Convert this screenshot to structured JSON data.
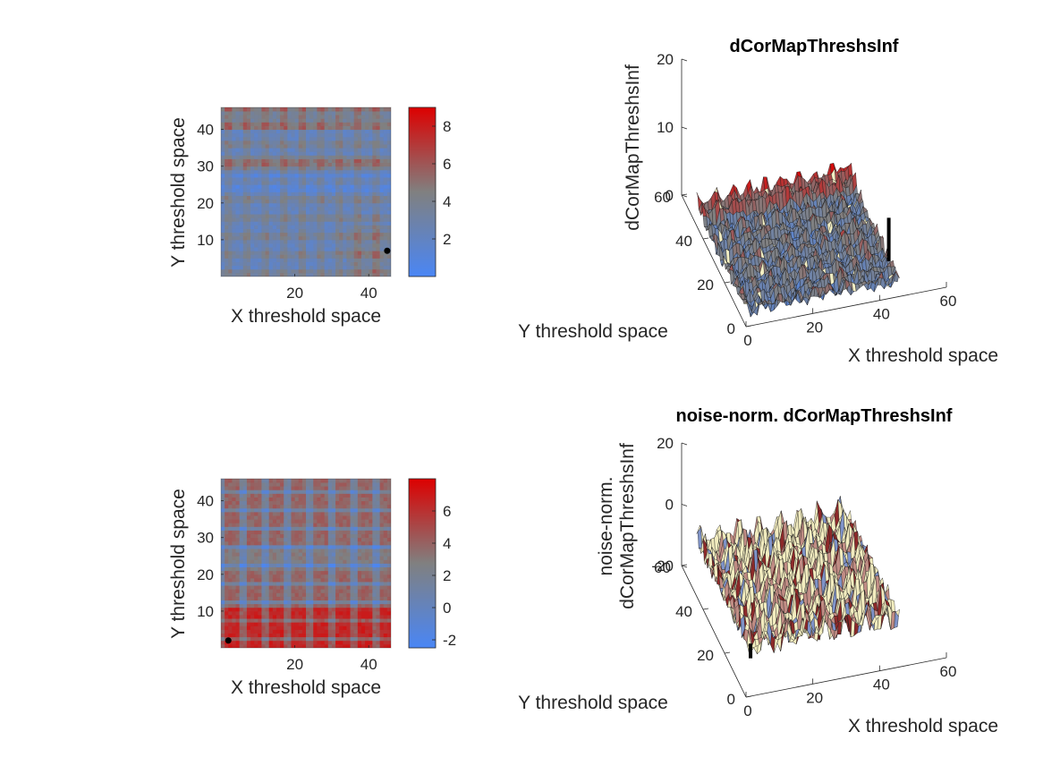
{
  "chart_data": [
    {
      "type": "heatmap",
      "xlabel": "X threshold space",
      "ylabel": "Y threshold space",
      "xlim": [
        0,
        46
      ],
      "ylim": [
        0,
        46
      ],
      "xticks": [
        20,
        40
      ],
      "yticks": [
        10,
        20,
        30,
        40
      ],
      "colorbar": {
        "ticks": [
          2,
          4,
          6,
          8
        ],
        "range": [
          0,
          9
        ],
        "colors": [
          "#4a86f5",
          "#808080",
          "#dd0000"
        ]
      },
      "marker": {
        "x": 45,
        "y": 7
      },
      "grid": false
    },
    {
      "type": "surface",
      "title": "dCorMapThreshsInf",
      "xlabel": "X threshold space",
      "ylabel": "Y threshold space",
      "zlabel": "dCorMapThreshsInf",
      "xlim": [
        0,
        60
      ],
      "ylim": [
        0,
        60
      ],
      "zlim": [
        0,
        20
      ],
      "xticks": [
        0,
        20,
        40,
        60
      ],
      "yticks": [
        0,
        20,
        40,
        60
      ],
      "zticks": [
        0,
        10,
        20
      ],
      "marker_line": {
        "x": 45,
        "y": 7
      },
      "grid": false
    },
    {
      "type": "heatmap",
      "xlabel": "X threshold space",
      "ylabel": "Y threshold space",
      "xlim": [
        0,
        46
      ],
      "ylim": [
        0,
        46
      ],
      "xticks": [
        20,
        40
      ],
      "yticks": [
        10,
        20,
        30,
        40
      ],
      "colorbar": {
        "ticks": [
          -2,
          0,
          2,
          4,
          6
        ],
        "range": [
          -2.5,
          8
        ],
        "colors": [
          "#4a86f5",
          "#808080",
          "#dd0000"
        ]
      },
      "marker": {
        "x": 2,
        "y": 2
      },
      "grid": false
    },
    {
      "type": "surface",
      "title": "noise-norm. dCorMapThreshsInf",
      "xlabel": "X threshold space",
      "ylabel": "Y threshold space",
      "zlabel": [
        "noise-norm.",
        "dCorMapThreshsInf"
      ],
      "xlim": [
        0,
        60
      ],
      "ylim": [
        0,
        60
      ],
      "zlim": [
        -20,
        20
      ],
      "xticks": [
        0,
        20,
        40,
        60
      ],
      "yticks": [
        0,
        20,
        40,
        60
      ],
      "zticks": [
        -20,
        0,
        20
      ],
      "marker_line": {
        "x": 2,
        "y": 2
      },
      "grid": false
    }
  ]
}
